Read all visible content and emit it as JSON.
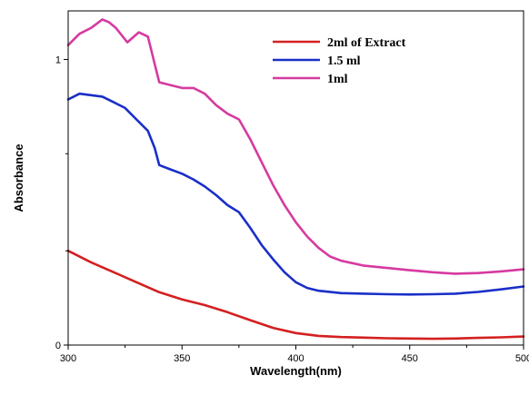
{
  "chart_data": {
    "type": "line",
    "xlabel": "Wavelength(nm)",
    "ylabel": "Absorbance",
    "xlim": [
      300,
      500
    ],
    "ylim": [
      0,
      1.17
    ],
    "x_ticks": [
      "300",
      "350",
      "400",
      "450",
      "500"
    ],
    "x_tick_values": [
      300,
      350,
      400,
      450,
      500
    ],
    "y_ticks": [
      "0",
      "1"
    ],
    "y_tick_values": [
      0,
      1
    ],
    "grid": false,
    "legend_position": "top-right",
    "series": [
      {
        "name": "2ml of Extract",
        "color": "#d42020",
        "x": [
          300,
          310,
          320,
          330,
          340,
          350,
          360,
          370,
          380,
          390,
          400,
          410,
          420,
          430,
          440,
          450,
          460,
          470,
          480,
          490,
          500
        ],
        "y": [
          0.33,
          0.29,
          0.255,
          0.22,
          0.185,
          0.16,
          0.14,
          0.115,
          0.087,
          0.06,
          0.042,
          0.032,
          0.028,
          0.026,
          0.024,
          0.023,
          0.022,
          0.023,
          0.025,
          0.027,
          0.03
        ]
      },
      {
        "name": "1.5 ml",
        "color": "#1a2fc8",
        "x": [
          300,
          305,
          310,
          315,
          320,
          325,
          330,
          335,
          338,
          340,
          345,
          350,
          355,
          360,
          365,
          370,
          375,
          380,
          385,
          390,
          395,
          400,
          405,
          410,
          420,
          430,
          440,
          450,
          460,
          470,
          480,
          490,
          500
        ],
        "y": [
          0.86,
          0.88,
          0.875,
          0.87,
          0.85,
          0.83,
          0.79,
          0.75,
          0.69,
          0.63,
          0.615,
          0.6,
          0.58,
          0.555,
          0.525,
          0.49,
          0.465,
          0.41,
          0.35,
          0.3,
          0.255,
          0.22,
          0.2,
          0.19,
          0.182,
          0.18,
          0.178,
          0.177,
          0.178,
          0.18,
          0.186,
          0.195,
          0.205
        ]
      },
      {
        "name": "1ml",
        "color": "#d63aa0",
        "x": [
          300,
          305,
          310,
          315,
          318,
          321,
          326,
          331,
          335,
          340,
          345,
          350,
          355,
          360,
          365,
          370,
          375,
          380,
          385,
          390,
          395,
          400,
          405,
          410,
          415,
          420,
          430,
          440,
          450,
          460,
          470,
          480,
          490,
          500
        ],
        "y": [
          1.05,
          1.09,
          1.11,
          1.14,
          1.13,
          1.11,
          1.06,
          1.095,
          1.08,
          0.92,
          0.91,
          0.9,
          0.9,
          0.88,
          0.84,
          0.81,
          0.79,
          0.72,
          0.64,
          0.56,
          0.49,
          0.43,
          0.38,
          0.34,
          0.31,
          0.295,
          0.278,
          0.27,
          0.262,
          0.255,
          0.25,
          0.252,
          0.258,
          0.265
        ]
      }
    ]
  }
}
